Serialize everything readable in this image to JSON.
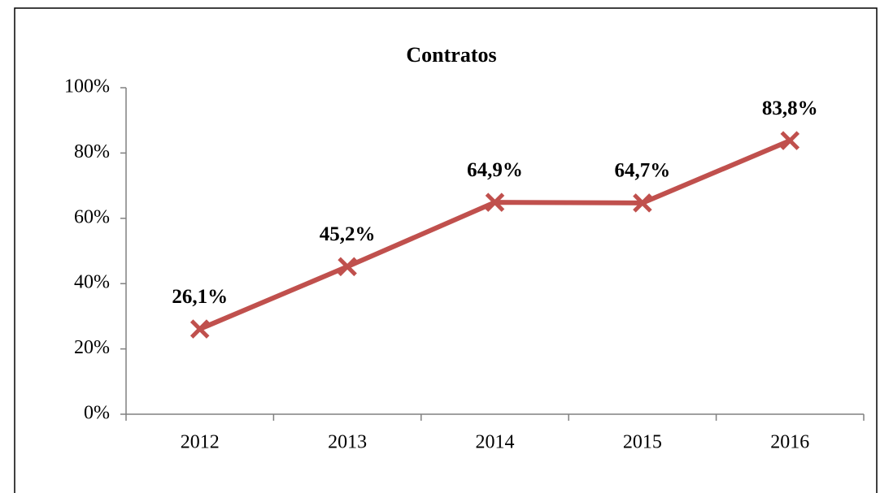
{
  "chart_data": {
    "type": "line",
    "title": "Contratos",
    "categories": [
      "2012",
      "2013",
      "2014",
      "2015",
      "2016"
    ],
    "series": [
      {
        "name": "Contratos",
        "color": "#c0504d",
        "values": [
          26.1,
          45.2,
          64.9,
          64.7,
          83.8
        ],
        "value_labels": [
          "26,1%",
          "45,2%",
          "64,9%",
          "64,7%",
          "83,8%"
        ]
      }
    ],
    "ylim": [
      0,
      100
    ],
    "yticks": [
      {
        "value": 0,
        "label": "0%"
      },
      {
        "value": 20,
        "label": "20%"
      },
      {
        "value": 40,
        "label": "40%"
      },
      {
        "value": 60,
        "label": "60%"
      },
      {
        "value": 80,
        "label": "80%"
      },
      {
        "value": 100,
        "label": "100%"
      }
    ],
    "grid": false,
    "marker": "x"
  }
}
